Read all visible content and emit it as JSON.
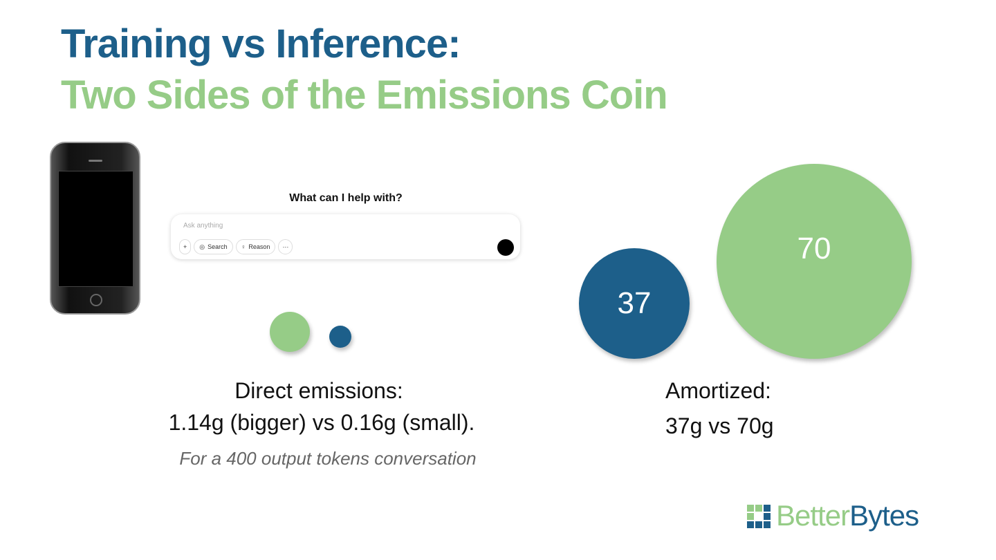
{
  "title": {
    "line1": "Training vs Inference:",
    "line2": "Two Sides of the Emissions Coin"
  },
  "chat_ui": {
    "prompt": "What can I help with?",
    "placeholder": "Ask anything",
    "buttons": [
      "Search",
      "Reason"
    ]
  },
  "bubbles": {
    "small": 37,
    "large": 70
  },
  "direct": {
    "heading": "Direct emissions:",
    "detail": "1.14g (bigger) vs 0.16g (small).",
    "note": "For a 400 output tokens conversation"
  },
  "amortized": {
    "heading": "Amortized:",
    "detail": "37g vs 70g"
  },
  "logo": {
    "part1": "Better",
    "part2": "Bytes"
  }
}
